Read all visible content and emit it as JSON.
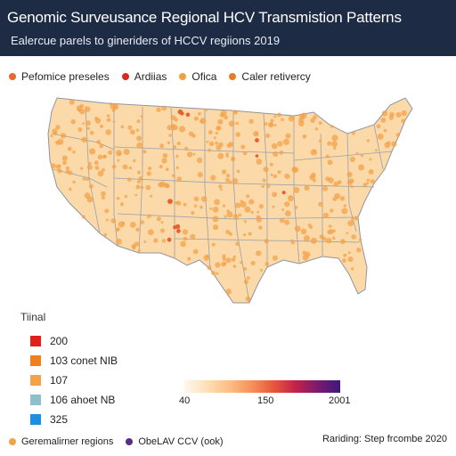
{
  "header": {
    "title": "Genomic Surveusance Regional HCV Transmistion Patterns",
    "subtitle": "Ealercue parels to gineriders of HCCV regiions 2019"
  },
  "legend_top": [
    {
      "label": "Pefomice preseles",
      "color": "#e8692a"
    },
    {
      "label": "Ardiias",
      "color": "#d42a1f"
    },
    {
      "label": "Ofica",
      "color": "#f2a03d"
    },
    {
      "label": "Caler retivercy",
      "color": "#e87a2a"
    }
  ],
  "scale_legend": {
    "title": "Tiinal",
    "items": [
      {
        "label": "200",
        "color": "#e0201b"
      },
      {
        "label": "103 conet NIB",
        "color": "#f07f1e"
      },
      {
        "label": "107",
        "color": "#f4a14a"
      },
      {
        "label": "106 ahoet NB",
        "color": "#8ebfcb"
      },
      {
        "label": "325",
        "color": "#1e8fe0"
      }
    ]
  },
  "gradient": {
    "min_label": "40",
    "mid_label": "150",
    "max_label": "2001"
  },
  "legend_bottom": [
    {
      "label": "Geremalirner regions",
      "color": "#f4a14a"
    },
    {
      "label": "ObeLAV CCV (ook)",
      "color": "#5a2a8a"
    }
  ],
  "source_note": "Rariding: Step frcombe 2020",
  "colors": {
    "header_bg": "#1e2b45",
    "state_fill": "#fbd9a8",
    "state_border": "#9aa0aa",
    "dot_light": "#f3a24a",
    "dot_hot": "#e85a28"
  }
}
